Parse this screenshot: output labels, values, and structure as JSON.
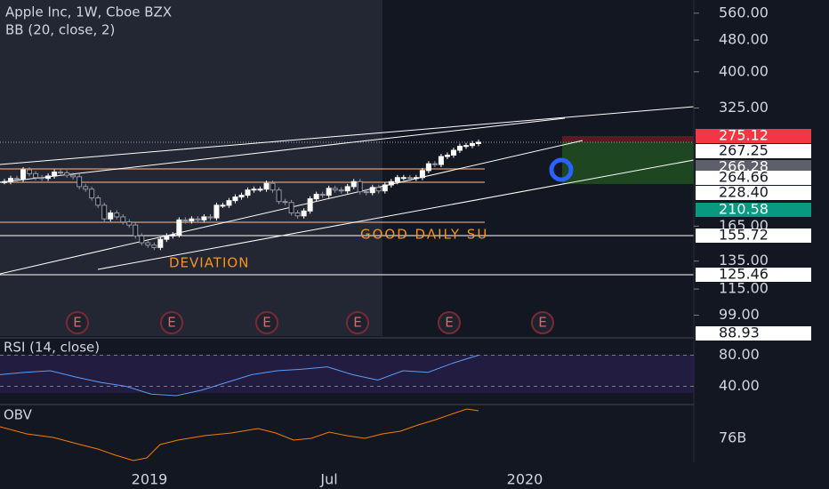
{
  "chart_data": {
    "type": "candlestick",
    "title": "Apple Inc, 1W, Cboe BZX",
    "indicator": "BB (20, close, 2)",
    "log_scale": true,
    "ylim": [
      87.8,
      604
    ],
    "yticks": [
      {
        "value": 560,
        "label": "560.00"
      },
      {
        "value": 480,
        "label": "480.00"
      },
      {
        "value": 400,
        "label": "400.00"
      },
      {
        "value": 325,
        "label": "325.00"
      },
      {
        "value": 165,
        "label": "165.00"
      },
      {
        "value": 135,
        "label": "135.00"
      },
      {
        "value": 115,
        "label": "115.00"
      },
      {
        "value": 99,
        "label": "99.00"
      }
    ],
    "price_labels": [
      {
        "value": 275.12,
        "label": "275.12",
        "color": "#f23645"
      },
      {
        "value": 267.25,
        "label": "267.25",
        "color": "#ffffff"
      },
      {
        "value": 266.28,
        "label": "266.28",
        "color": "#5d606b"
      },
      {
        "value": 264.66,
        "label": "264.66",
        "color": "#ffffff"
      },
      {
        "value": 228.4,
        "label": "228.40",
        "color": "#ffffff"
      },
      {
        "value": 210.58,
        "label": "210.58",
        "color": "#089981"
      },
      {
        "value": 155.72,
        "label": "155.72",
        "color": "#ffffff"
      },
      {
        "value": 125.46,
        "label": "125.46",
        "color": "#ffffff"
      },
      {
        "value": 88.93,
        "label": "88.93",
        "color": "#ffffff"
      }
    ],
    "close": [
      213,
      217,
      216,
      228,
      223,
      218,
      217,
      220,
      225,
      224,
      221,
      219,
      207,
      204,
      194,
      186,
      172,
      178,
      174,
      169,
      166,
      156,
      150,
      148,
      146,
      153,
      156,
      157,
      171,
      170,
      172,
      171,
      174,
      173,
      186,
      186,
      191,
      195,
      197,
      203,
      204,
      204,
      211,
      203,
      190,
      189,
      178,
      175,
      180,
      193,
      198,
      197,
      205,
      203,
      202,
      207,
      213,
      201,
      200,
      206,
      202,
      209,
      213,
      218,
      218,
      217,
      218,
      227,
      236,
      235,
      246,
      248,
      255,
      261,
      262,
      265,
      267
    ],
    "up_color": "#ffffff",
    "down_color": "#9598a1",
    "annotations": [
      "GOOD DAILY SU",
      "DEVIATION"
    ],
    "events": [
      "E",
      "E",
      "E",
      "E",
      "E",
      "E"
    ],
    "time_labels": [
      "2019",
      "Jul",
      "2020"
    ],
    "rsi": {
      "title": "RSI (14, close)",
      "ylim": [
        20,
        100
      ],
      "yticks": [
        {
          "value": 80,
          "label": "80.00"
        },
        {
          "value": 40,
          "label": "40.00"
        }
      ],
      "values": [
        55,
        58,
        60,
        52,
        45,
        40,
        30,
        28,
        35,
        45,
        55,
        60,
        62,
        65,
        55,
        48,
        60,
        58,
        70,
        80
      ],
      "color": "#5b9cf6"
    },
    "obv": {
      "title": "OBV",
      "tick": "76B",
      "color": "#f57c00"
    }
  }
}
